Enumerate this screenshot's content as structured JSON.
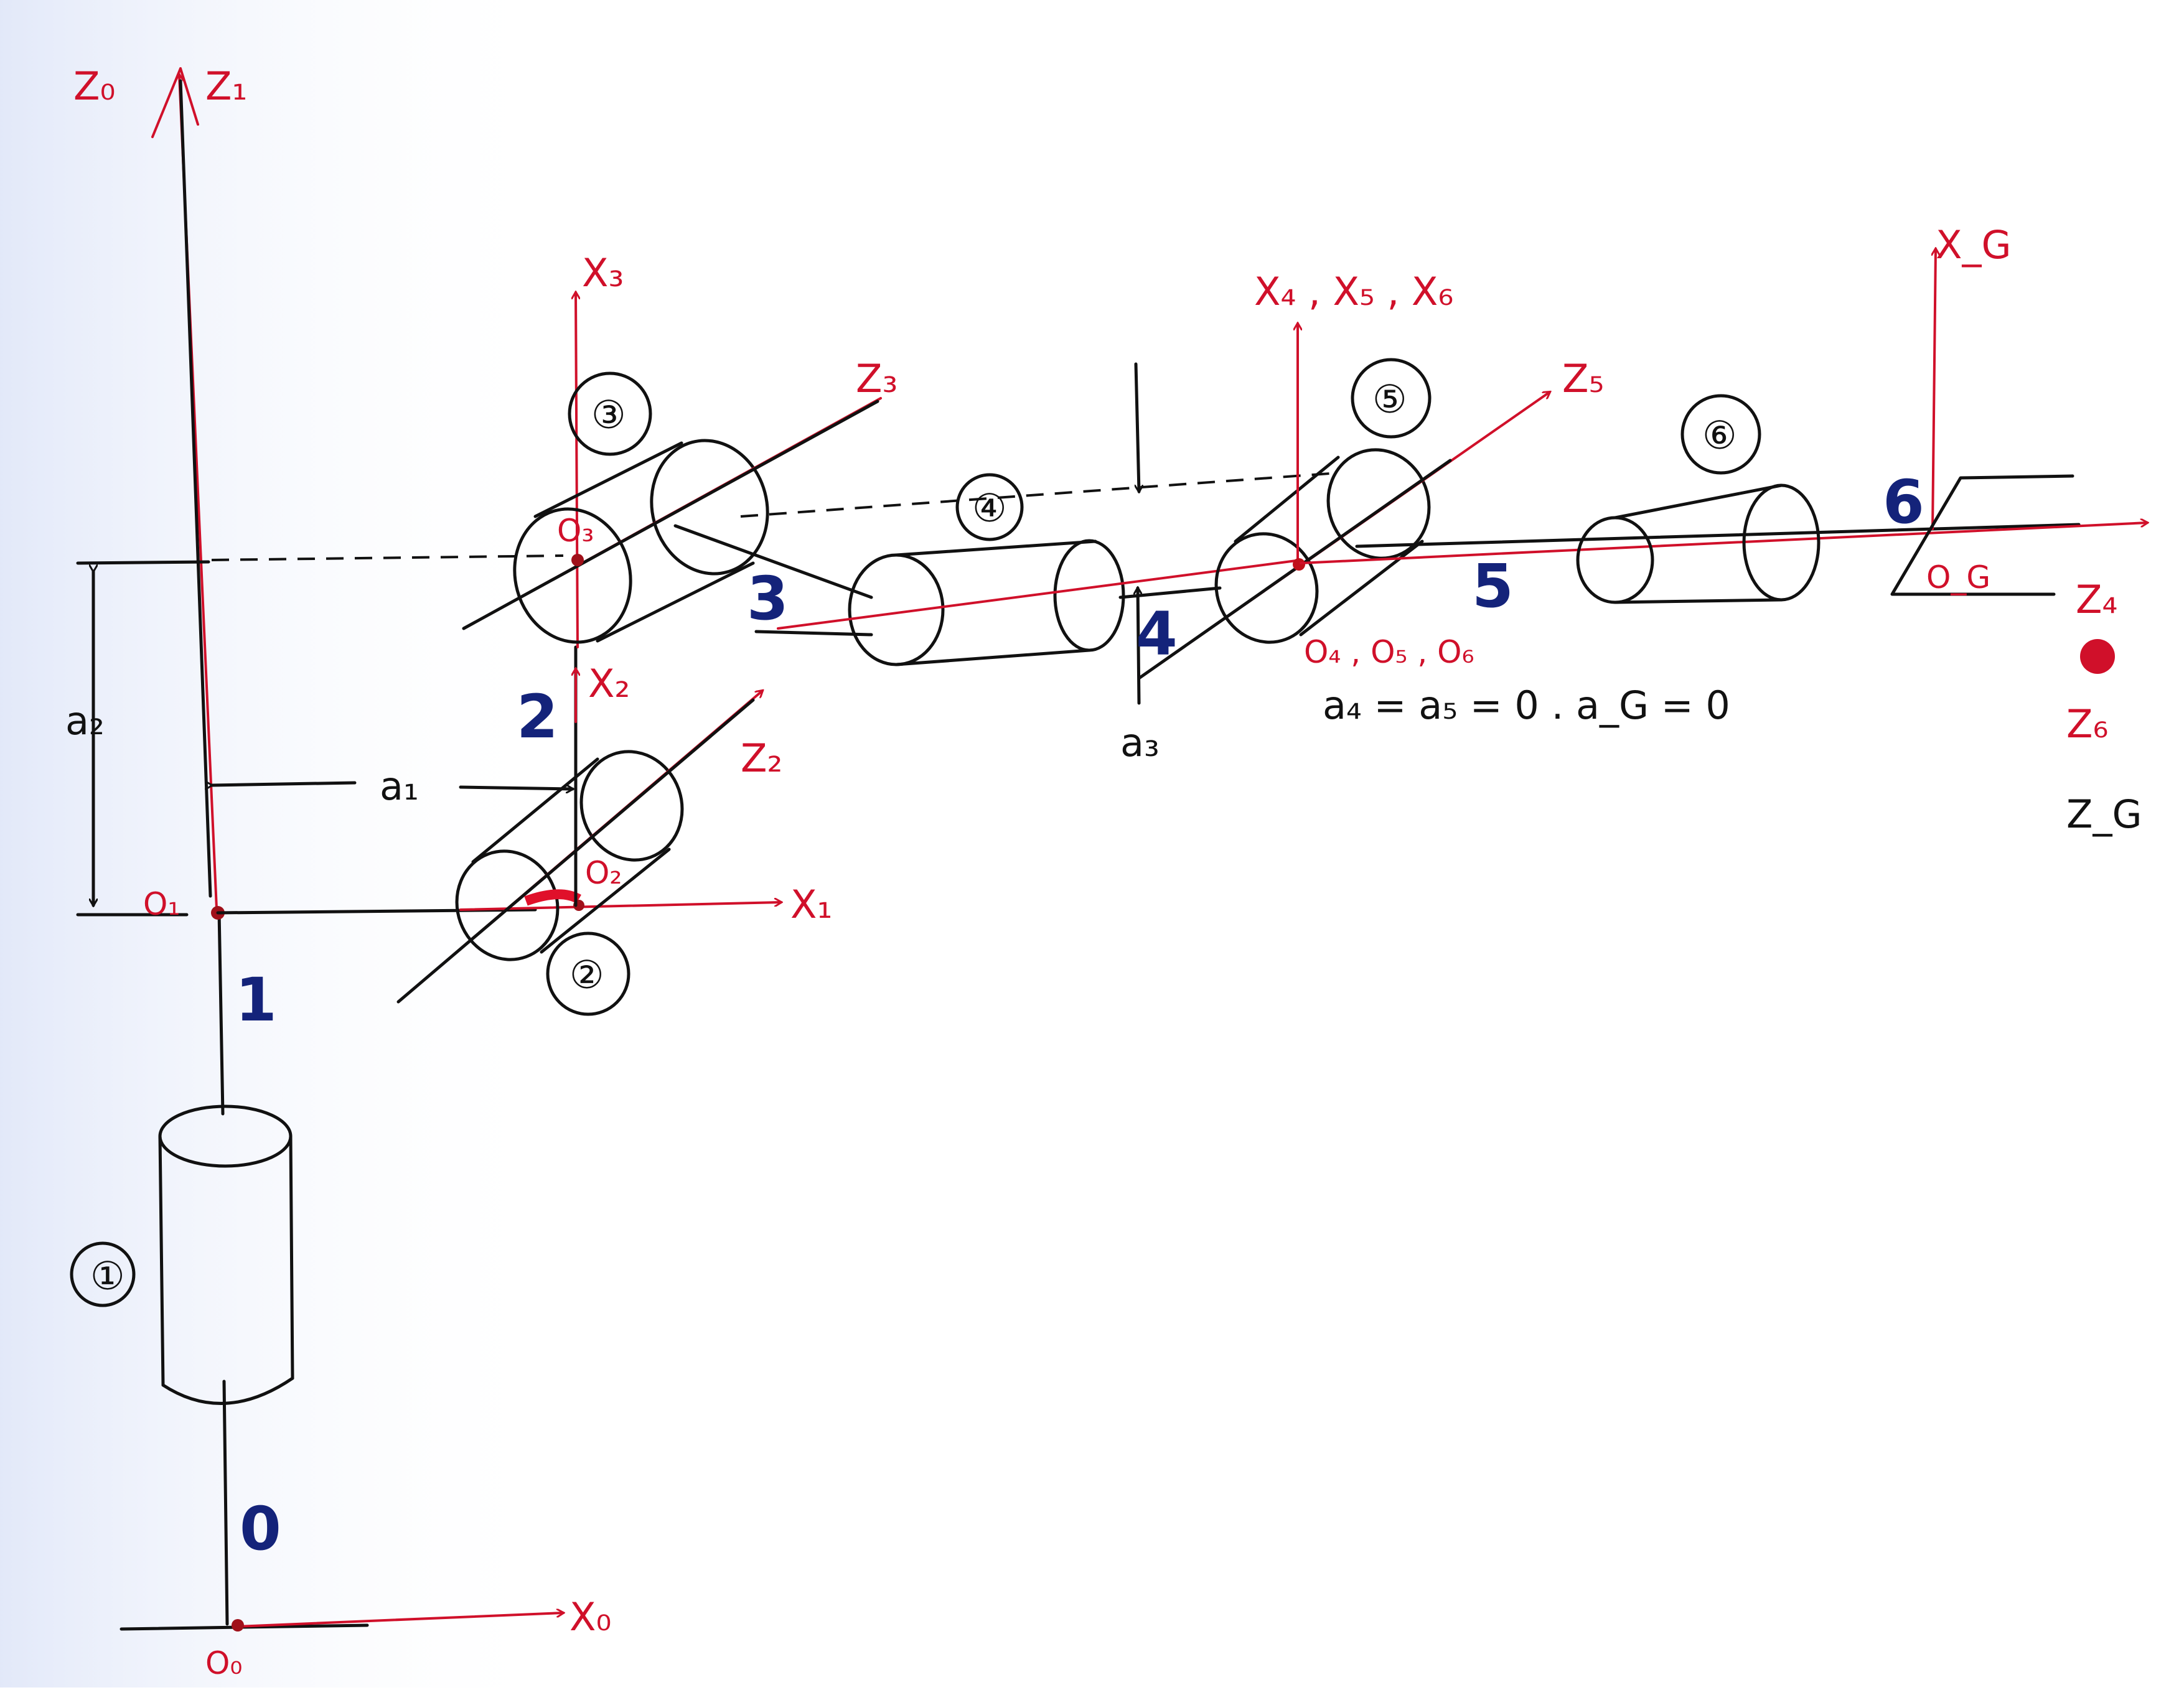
{
  "colors": {
    "ink": "#111111",
    "axis": "#d0102a",
    "link_number": "#14237a",
    "paper": "#ffffff",
    "paper_tint": "#dfe6f8"
  },
  "axes": {
    "z0": "Z₀",
    "z1": "Z₁",
    "x0": "X₀",
    "x1": "X₁",
    "x2": "X₂",
    "x3": "X₃",
    "z2": "Z₂",
    "z3": "Z₃",
    "x456": "X₄ , X₅ , X₆",
    "z5": "Z₅",
    "xg": "X_G",
    "z4": "Z₄",
    "z6": "Z₆",
    "zg": "Z_G"
  },
  "origins": {
    "o0": "O₀",
    "o1": "O₁",
    "o2": "O₂",
    "o3": "O₃",
    "o456": "O₄ , O₅ , O₆",
    "og": "O_G"
  },
  "dimensions": {
    "a1": "a₁",
    "a2": "a₂",
    "a3": "a₃",
    "equation": "a₄ = a₅ = 0 . a_G = 0"
  },
  "joint_numbers": [
    "①",
    "②",
    "③",
    "④",
    "⑤",
    "⑥"
  ],
  "link_numbers": [
    "0",
    "1",
    "2",
    "3",
    "4",
    "5",
    "6"
  ]
}
